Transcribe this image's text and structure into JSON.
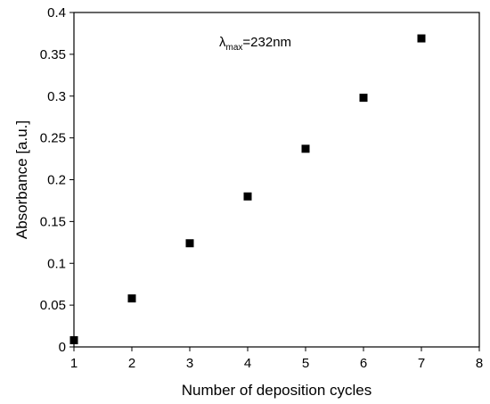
{
  "chart_data": {
    "type": "scatter",
    "title": "",
    "xlabel": "Number of deposition cycles",
    "ylabel": "Absorbance [a.u.]",
    "xlim": [
      1,
      8
    ],
    "ylim": [
      0,
      0.4
    ],
    "x_ticks": [
      "1",
      "2",
      "3",
      "4",
      "5",
      "6",
      "7",
      "8"
    ],
    "y_ticks": [
      "0",
      "0.05",
      "0.1",
      "0.15",
      "0.2",
      "0.25",
      "0.3",
      "0.35",
      "0.4"
    ],
    "grid": false,
    "legend": "none",
    "marker": "square",
    "marker_color": "#000000",
    "annotation": {
      "symbol": "λ",
      "subscript": "max",
      "text": "=232nm"
    },
    "series": [
      {
        "x": [
          1,
          2,
          3,
          4,
          5,
          6,
          7
        ],
        "y": [
          0.008,
          0.058,
          0.124,
          0.18,
          0.237,
          0.298,
          0.369
        ]
      }
    ]
  }
}
